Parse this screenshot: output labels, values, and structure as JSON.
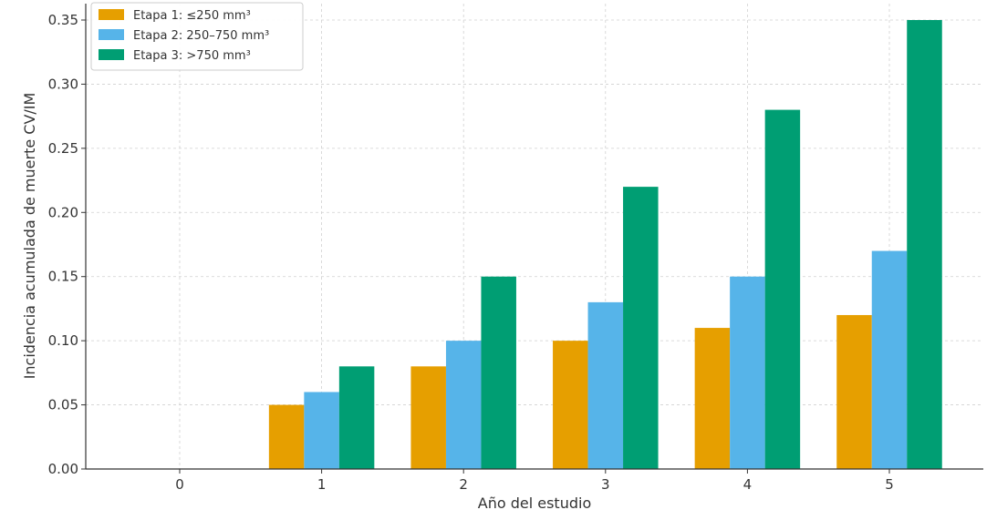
{
  "chart_data": {
    "type": "bar",
    "title": "",
    "xlabel": "Año del estudio",
    "ylabel": "Incidencia acumulada de muerte CV/IM",
    "categories": [
      "0",
      "1",
      "2",
      "3",
      "4",
      "5"
    ],
    "ylim": [
      0,
      0.35
    ],
    "yticks": [
      "0.00",
      "0.05",
      "0.10",
      "0.15",
      "0.20",
      "0.25",
      "0.30",
      "0.35"
    ],
    "grid": true,
    "legend_position": "top-left",
    "series": [
      {
        "name": "Etapa 1: ≤250 mm³",
        "color": "#E69F00",
        "values": [
          0,
          0.05,
          0.08,
          0.1,
          0.11,
          0.12
        ]
      },
      {
        "name": "Etapa 2: 250–750 mm³",
        "color": "#56B4E9",
        "values": [
          0,
          0.06,
          0.1,
          0.13,
          0.15,
          0.17
        ]
      },
      {
        "name": "Etapa 3: >750 mm³",
        "color": "#009E73",
        "values": [
          0,
          0.08,
          0.15,
          0.22,
          0.28,
          0.35
        ]
      }
    ]
  }
}
